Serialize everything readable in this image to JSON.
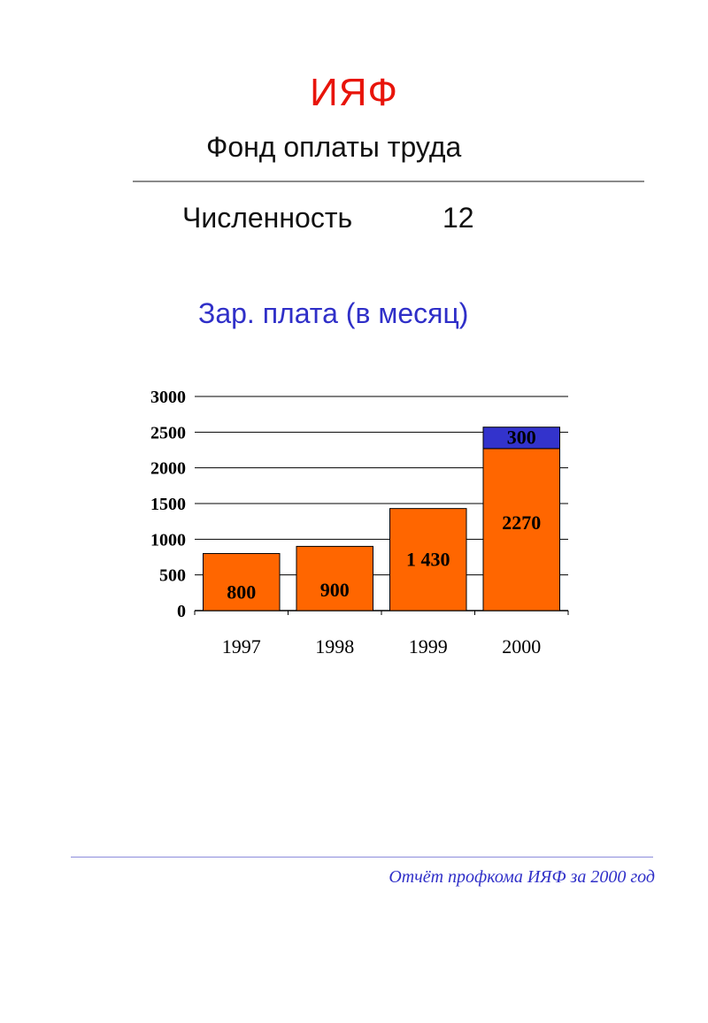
{
  "header": {
    "title": "ИЯФ",
    "subtitle": "Фонд оплаты труда",
    "count_label": "Численность",
    "count_value": "12",
    "chart_heading": "Зар. плата (в месяц)"
  },
  "footer": {
    "text": "Отчёт профкома ИЯФ за 2000 год"
  },
  "colors": {
    "title": "#e8140a",
    "heading": "#2f2fc8",
    "bar_main": "#ff6600",
    "bar_extra": "#3333cc"
  },
  "chart_data": {
    "type": "bar",
    "stacked": true,
    "categories": [
      "1997",
      "1998",
      "1999",
      "2000"
    ],
    "series": [
      {
        "values": [
          800,
          900,
          1430,
          2270
        ],
        "labels": [
          "800",
          "900",
          "1 430",
          "2270"
        ],
        "color": "#ff6600"
      },
      {
        "values": [
          0,
          0,
          0,
          300
        ],
        "labels": [
          "",
          "",
          "",
          "300"
        ],
        "color": "#3333cc"
      }
    ],
    "yticks": [
      0,
      500,
      1000,
      1500,
      2000,
      2500,
      3000
    ],
    "ylim": [
      0,
      3000
    ],
    "grid": true
  }
}
